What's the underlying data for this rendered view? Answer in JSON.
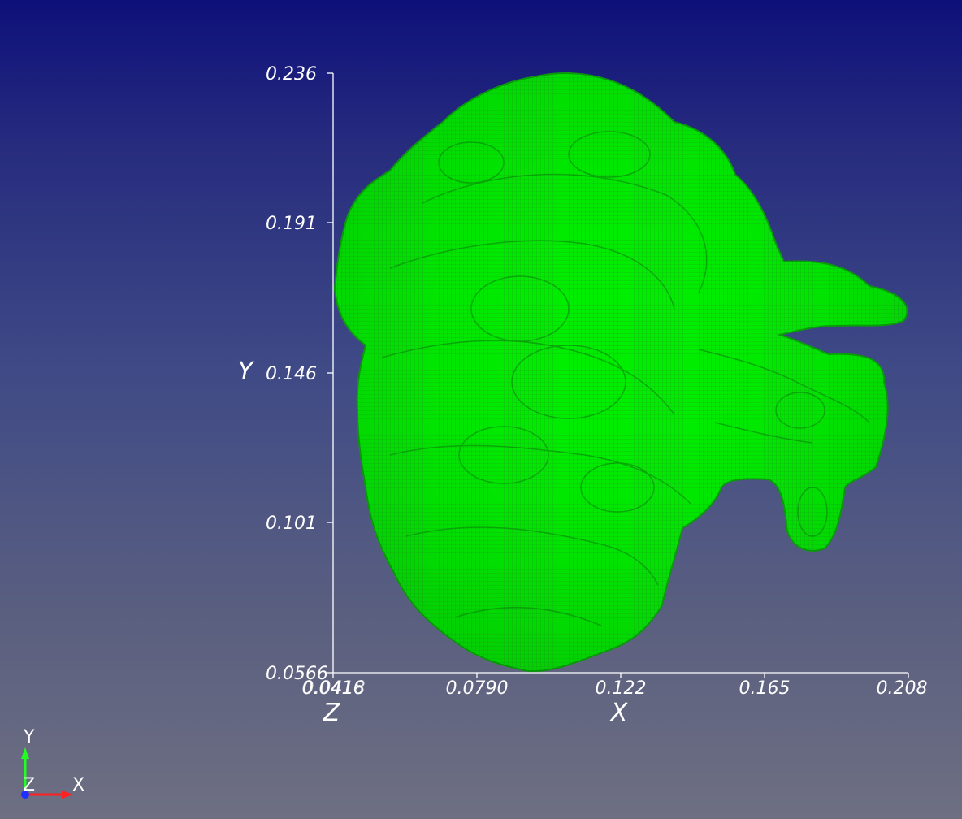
{
  "viewer": {
    "background_top": "#0e107a",
    "background_bottom": "#6e6f82",
    "mesh_color": "#00ee00",
    "mesh_line_color": "#1a8a1a",
    "representation": "wireframe surface"
  },
  "cube_axes": {
    "x_title": "X",
    "y_title": "Y",
    "z_title": "Z",
    "x_ticks": [
      "0.0790",
      "0.122",
      "0.165",
      "0.208"
    ],
    "x_origin_overlap": [
      "0.0416",
      "0.0418"
    ],
    "y_ticks": [
      "0.0566",
      "0.101",
      "0.146",
      "0.191",
      "0.236"
    ],
    "x_range": [
      0.0418,
      0.208
    ],
    "y_range": [
      0.0566,
      0.236
    ]
  },
  "orientation_axes": {
    "x_label": "X",
    "y_label": "Y",
    "z_label": "Z",
    "x_color": "#ff2020",
    "y_color": "#20ff20",
    "z_color": "#2030ff"
  }
}
